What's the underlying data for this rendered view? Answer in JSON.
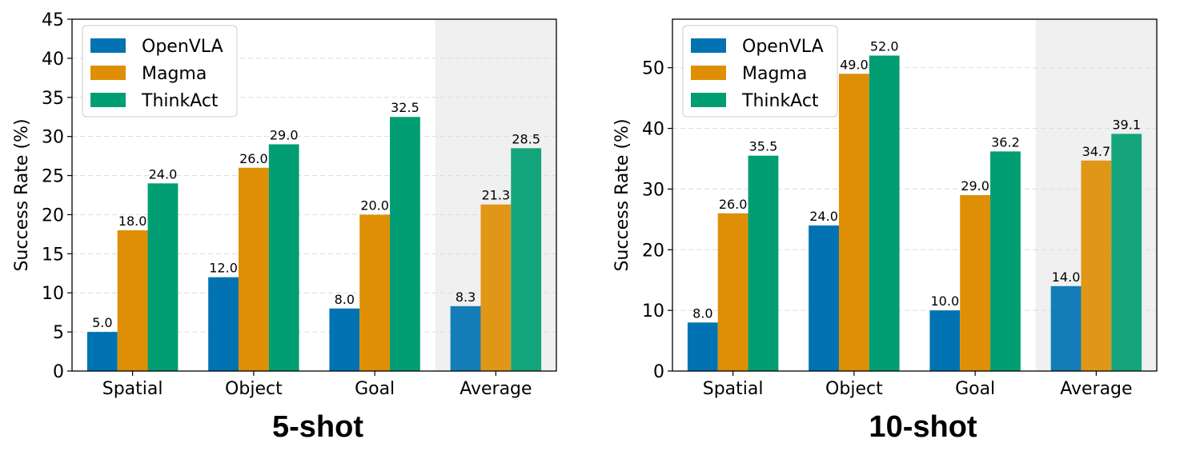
{
  "colors": {
    "OpenVLA": "#0173b2",
    "Magma": "#de8f05",
    "ThinkAct": "#029e73",
    "highlight_band": "#ebebeb",
    "grid": "#dcdcdc"
  },
  "chart_data": [
    {
      "type": "bar",
      "title": "5-shot",
      "ylabel": "Success Rate (%)",
      "xlabel": "",
      "categories": [
        "Spatial",
        "Object",
        "Goal",
        "Average"
      ],
      "highlighted_category": "Average",
      "ylim": [
        0,
        45
      ],
      "yticks": [
        0,
        5,
        10,
        15,
        20,
        25,
        30,
        35,
        40,
        45
      ],
      "grid": true,
      "legend": "top-left",
      "series": [
        {
          "name": "OpenVLA",
          "values": [
            5.0,
            12.0,
            8.0,
            8.3
          ],
          "labels": [
            "5.0",
            "12.0",
            "8.0",
            "8.3"
          ]
        },
        {
          "name": "Magma",
          "values": [
            18.0,
            26.0,
            20.0,
            21.3
          ],
          "labels": [
            "18.0",
            "26.0",
            "20.0",
            "21.3"
          ]
        },
        {
          "name": "ThinkAct",
          "values": [
            24.0,
            29.0,
            32.5,
            28.5
          ],
          "labels": [
            "24.0",
            "29.0",
            "32.5",
            "28.5"
          ]
        }
      ]
    },
    {
      "type": "bar",
      "title": "10-shot",
      "ylabel": "Success Rate (%)",
      "xlabel": "",
      "categories": [
        "Spatial",
        "Object",
        "Goal",
        "Average"
      ],
      "highlighted_category": "Average",
      "ylim": [
        0,
        58
      ],
      "yticks": [
        0,
        10,
        20,
        30,
        40,
        50
      ],
      "grid": true,
      "legend": "top-left",
      "series": [
        {
          "name": "OpenVLA",
          "values": [
            8.0,
            24.0,
            10.0,
            14.0
          ],
          "labels": [
            "8.0",
            "24.0",
            "10.0",
            "14.0"
          ]
        },
        {
          "name": "Magma",
          "values": [
            26.0,
            49.0,
            29.0,
            34.7
          ],
          "labels": [
            "26.0",
            "49.0",
            "29.0",
            "34.7"
          ]
        },
        {
          "name": "ThinkAct",
          "values": [
            35.5,
            52.0,
            36.2,
            39.1
          ],
          "labels": [
            "35.5",
            "52.0",
            "36.2",
            "39.1"
          ]
        }
      ]
    }
  ]
}
